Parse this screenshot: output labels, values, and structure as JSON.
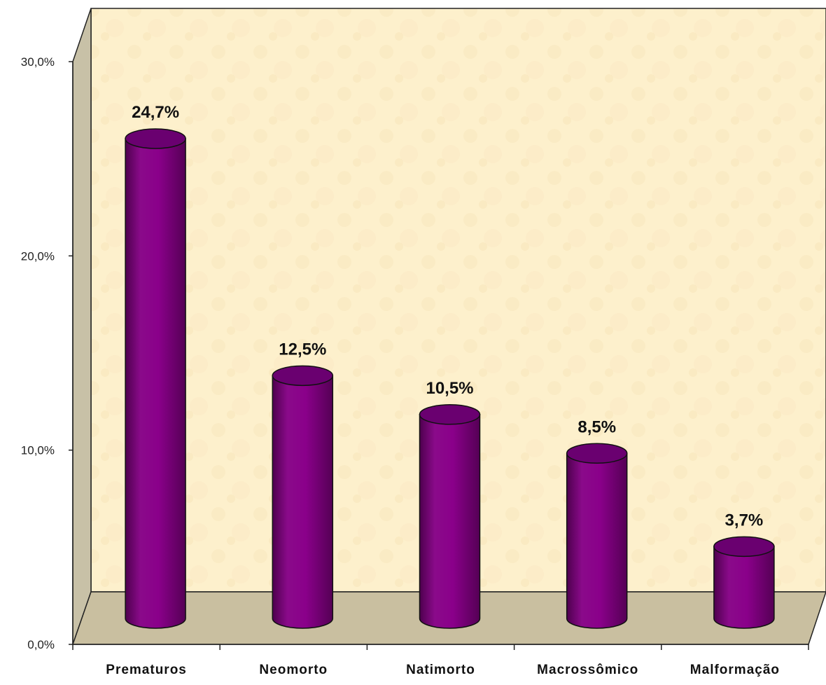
{
  "chart_data": {
    "type": "bar",
    "categories": [
      "Prematuros",
      "Neomorto",
      "Natimorto",
      "Macrossômico",
      "Malformação"
    ],
    "values": [
      24.7,
      12.5,
      10.5,
      8.5,
      3.7
    ],
    "data_labels": [
      "24,7%",
      "12,5%",
      "10,5%",
      "8,5%",
      "3,7%"
    ],
    "title": "",
    "xlabel": "",
    "ylabel": "",
    "ylim": [
      0,
      30
    ],
    "yticks": [
      0,
      10,
      20,
      30
    ],
    "ytick_labels": [
      "0,0%",
      "10,0%",
      "20,0%",
      "30,0%"
    ],
    "grid": false,
    "legend": "none",
    "colors": {
      "bar": "#800080",
      "bar_top": "#6a0070",
      "wall": "#fdf0cc",
      "floor": "#c9bfa0"
    }
  }
}
